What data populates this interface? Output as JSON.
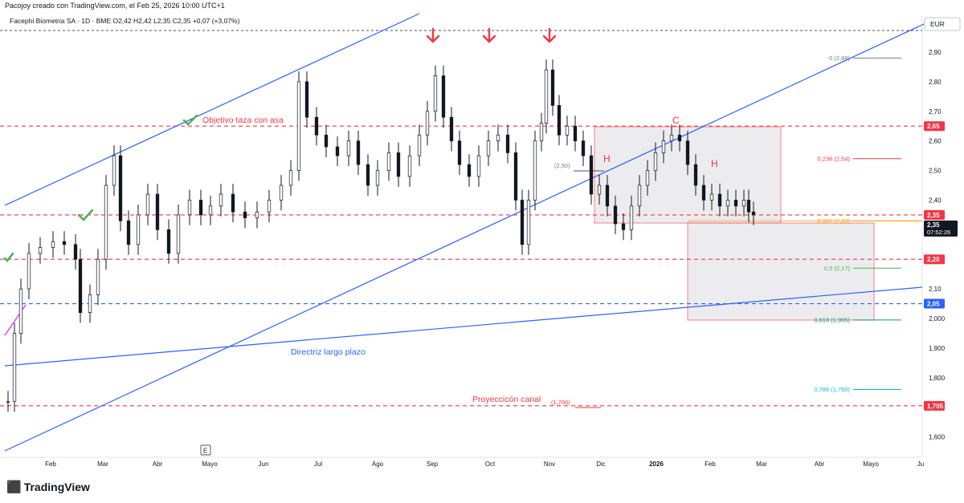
{
  "header": {
    "credit": "Pacojoy creado con TradingView.com, el Feb 25, 2026 10:00 UTC+1"
  },
  "symbol_bar": {
    "name": "Facephi Biometria SA · 1D · BME",
    "open": "O2,42",
    "high": "H2,42",
    "low": "L2,35",
    "close": "C2,35",
    "change": "+0,07 (+3,07%)"
  },
  "currency": "EUR",
  "footer": {
    "brand": "TradingView",
    "logo_icon": "tradingview-logo-icon"
  },
  "x_axis_labels": [
    "Feb",
    "Mar",
    "Abr",
    "Mayo",
    "Jun",
    "Jul",
    "Ago",
    "Sep",
    "Oct",
    "Nov",
    "Dic",
    "2026",
    "Feb",
    "Mar",
    "Abr",
    "Mayo",
    "Ju"
  ],
  "price_axis": {
    "ticks": [
      "2,90",
      "2,80",
      "2,70",
      "2,60",
      "2,50",
      "2,40",
      "2,30",
      "2,10",
      "2,000",
      "1,900",
      "1,800",
      "1,600"
    ],
    "tick_values": [
      2.9,
      2.8,
      2.7,
      2.6,
      2.5,
      2.4,
      2.3,
      2.1,
      2.0,
      1.9,
      1.8,
      1.6
    ],
    "badges": [
      {
        "text": "2,65",
        "value": 2.65,
        "color": "#f23645"
      },
      {
        "text": "2,35",
        "value": 2.35,
        "color": "#f23645"
      },
      {
        "text": "2,20",
        "value": 2.2,
        "color": "#f23645"
      },
      {
        "text": "2,05",
        "value": 2.05,
        "color": "#2962ff"
      },
      {
        "text": "1,705",
        "value": 1.705,
        "color": "#f23645"
      }
    ],
    "current": {
      "price": "2,35",
      "countdown": "07:52:26"
    }
  },
  "horizontal_levels": [
    {
      "value": 2.65,
      "color": "#f23645"
    },
    {
      "value": 2.35,
      "color": "#f23645"
    },
    {
      "value": 2.2,
      "color": "#f23645"
    },
    {
      "value": 2.05,
      "color": "#2962ff"
    },
    {
      "value": 1.705,
      "color": "#f23645"
    }
  ],
  "fibonacci": [
    {
      "label": "0 (2,88)",
      "value": 2.88,
      "color": "#787b86"
    },
    {
      "label": "0,236 (2,54)",
      "value": 2.54,
      "color": "#f23645"
    },
    {
      "label": "0,382 (2,33)",
      "value": 2.33,
      "color": "#ff9800"
    },
    {
      "label": "0,5 (2,17)",
      "value": 2.17,
      "color": "#4caf50"
    },
    {
      "label": "0,618 (1,995)",
      "value": 1.995,
      "color": "#089981"
    },
    {
      "label": "0,786 (1,760)",
      "value": 1.76,
      "color": "#00bcd4"
    }
  ],
  "annotations": {
    "objetivo": "Objetivo taza con asa",
    "directriz": "Directriz largo plazo",
    "proyeccion": "Proyeccicón canal",
    "proyeccion_value": "(1,700)",
    "level_250": "(2,50)",
    "H1": "H",
    "C": "C",
    "H2": "H",
    "e_badge": "E"
  },
  "chart_data": {
    "type": "candlestick",
    "x": [
      "Feb",
      "Mar",
      "Abr",
      "Mayo",
      "Jun",
      "Jul",
      "Ago",
      "Sep",
      "Oct",
      "Nov",
      "Dic",
      "2026",
      "Feb",
      "Mar"
    ],
    "close_approx": [
      2.2,
      2.45,
      2.3,
      2.35,
      2.35,
      2.65,
      2.4,
      2.75,
      2.55,
      2.8,
      2.4,
      2.6,
      2.38,
      2.35
    ],
    "ylim": [
      1.55,
      3.0
    ]
  }
}
